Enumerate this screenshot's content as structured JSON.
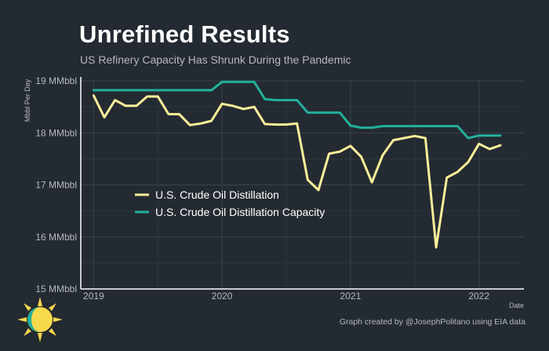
{
  "header": {
    "title": "Unrefined Results",
    "subtitle": "US Refinery Capacity Has Shrunk During the Pandemic"
  },
  "footer": {
    "credit": "Graph created by @JosephPolitano using EIA data"
  },
  "chart_data": {
    "type": "line",
    "title": "Unrefined Results",
    "subtitle": "US Refinery Capacity Has Shrunk During the Pandemic",
    "xlabel": "Date",
    "ylabel": "Mbbl Per Day",
    "x_start": "2019-01",
    "xlim": [
      2018.9,
      2022.35
    ],
    "ylim": [
      15,
      19
    ],
    "x_ticks": [
      {
        "value": 2019,
        "label": "2019"
      },
      {
        "value": 2020,
        "label": "2020"
      },
      {
        "value": 2021,
        "label": "2021"
      },
      {
        "value": 2022,
        "label": "2022"
      }
    ],
    "y_ticks": [
      {
        "value": 15,
        "label": "15 MMbbl"
      },
      {
        "value": 16,
        "label": "16 MMbbl"
      },
      {
        "value": 17,
        "label": "17 MMbbl"
      },
      {
        "value": 18,
        "label": "18 MMbbl"
      },
      {
        "value": 19,
        "label": "19 MMbbl"
      }
    ],
    "grid": true,
    "legend_position": "center-left",
    "series": [
      {
        "name": "U.S. Crude Oil Distillation",
        "color": "#fbef9a",
        "values": [
          18.72,
          18.3,
          18.63,
          18.52,
          18.52,
          18.7,
          18.7,
          18.36,
          18.36,
          18.15,
          18.18,
          18.23,
          18.56,
          18.52,
          18.46,
          18.5,
          18.17,
          18.16,
          18.16,
          18.18,
          17.1,
          16.9,
          17.6,
          17.64,
          17.75,
          17.54,
          17.05,
          17.57,
          17.86,
          17.9,
          17.94,
          17.9,
          15.8,
          17.14,
          17.25,
          17.44,
          17.79,
          17.69,
          17.76
        ]
      },
      {
        "name": "U.S. Crude Oil Distillation Capacity",
        "color": "#21b09b",
        "values": [
          18.82,
          18.82,
          18.82,
          18.82,
          18.82,
          18.82,
          18.82,
          18.82,
          18.82,
          18.82,
          18.82,
          18.82,
          18.98,
          18.98,
          18.98,
          18.98,
          18.65,
          18.63,
          18.63,
          18.63,
          18.39,
          18.39,
          18.39,
          18.39,
          18.14,
          18.1,
          18.1,
          18.13,
          18.13,
          18.13,
          18.13,
          18.13,
          18.13,
          18.13,
          18.13,
          17.9,
          17.95,
          17.95,
          17.95
        ]
      }
    ]
  }
}
